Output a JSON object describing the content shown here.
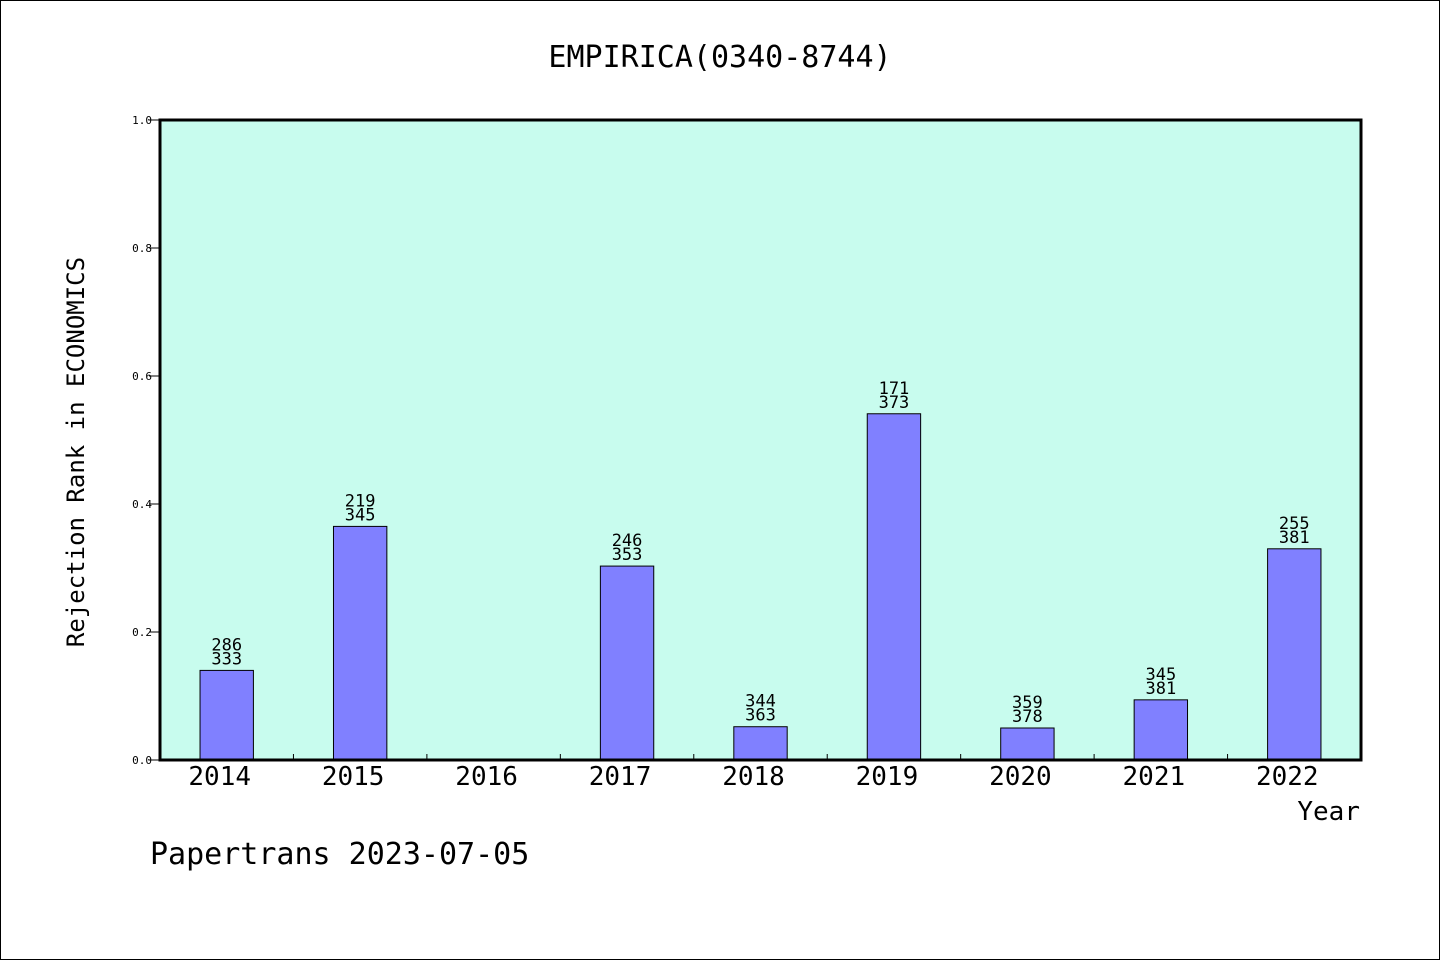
{
  "chart_data": {
    "type": "bar",
    "title": "EMPIRICA(0340-8744)",
    "xlabel": "Year",
    "ylabel": "Rejection Rank in ECONOMICS",
    "ylim": [
      0,
      1.0
    ],
    "yticks": [
      "0.0",
      "0.2",
      "0.4",
      "0.6",
      "0.8",
      "1.0"
    ],
    "categories": [
      "2014",
      "2015",
      "2016",
      "2017",
      "2018",
      "2019",
      "2020",
      "2021",
      "2022"
    ],
    "values": [
      0.14,
      0.365,
      null,
      0.303,
      0.052,
      0.541,
      0.05,
      0.094,
      0.33
    ],
    "label_top": [
      "286",
      "219",
      "",
      "246",
      "344",
      "171",
      "359",
      "345",
      "255"
    ],
    "label_bottom": [
      "333",
      "345",
      "",
      "353",
      "363",
      "373",
      "378",
      "381",
      "381"
    ],
    "background_color": "#c8fcee",
    "bar_color": "#8080ff",
    "grid": false
  },
  "footer": "Papertrans 2023-07-05"
}
